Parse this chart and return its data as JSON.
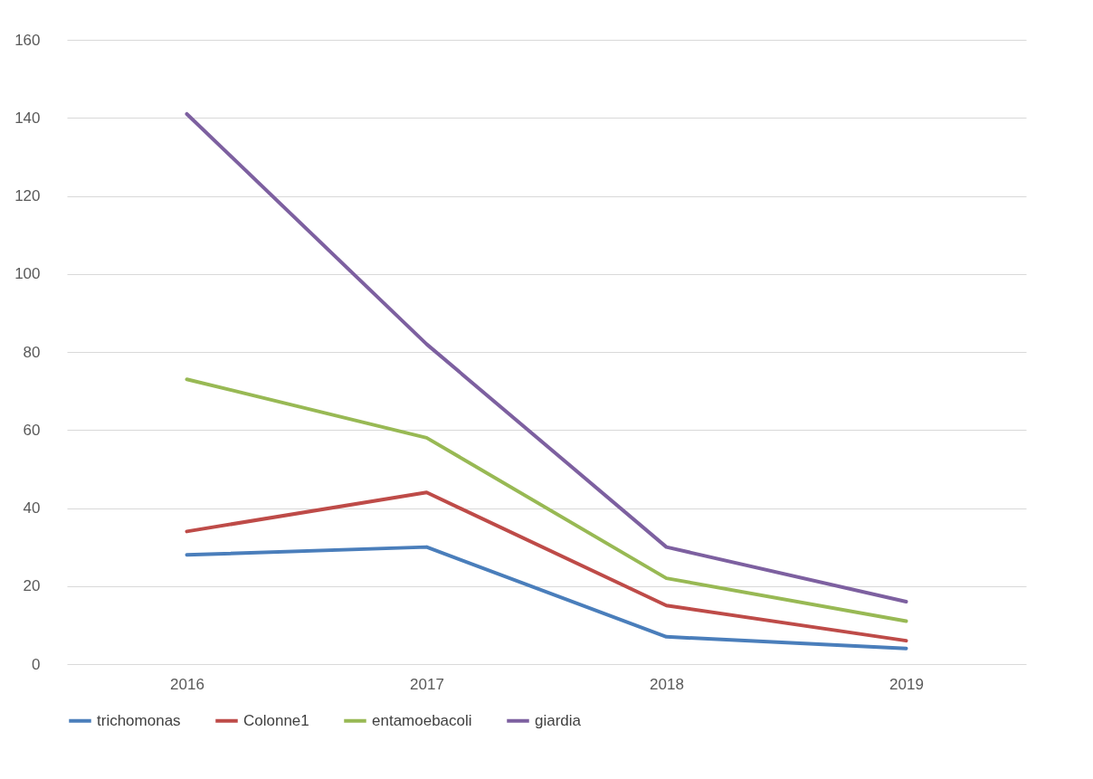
{
  "chart_data": {
    "type": "line",
    "categories": [
      "2016",
      "2017",
      "2018",
      "2019"
    ],
    "series": [
      {
        "name": "trichomonas",
        "color": "#4a7ebb",
        "values": [
          28,
          30,
          7,
          4
        ]
      },
      {
        "name": "Colonne1",
        "color": "#be4b48",
        "values": [
          34,
          44,
          15,
          6
        ]
      },
      {
        "name": "entamoebacoli",
        "color": "#98b954",
        "values": [
          73,
          58,
          22,
          11
        ]
      },
      {
        "name": "giardia",
        "color": "#7d60a0",
        "values": [
          141,
          82,
          30,
          16
        ]
      }
    ],
    "ylim": [
      0,
      160
    ],
    "yticks": [
      0,
      20,
      40,
      60,
      80,
      100,
      120,
      140,
      160
    ],
    "grid": "y",
    "legend": "bottom",
    "line_style": "solid",
    "marker": "none"
  }
}
